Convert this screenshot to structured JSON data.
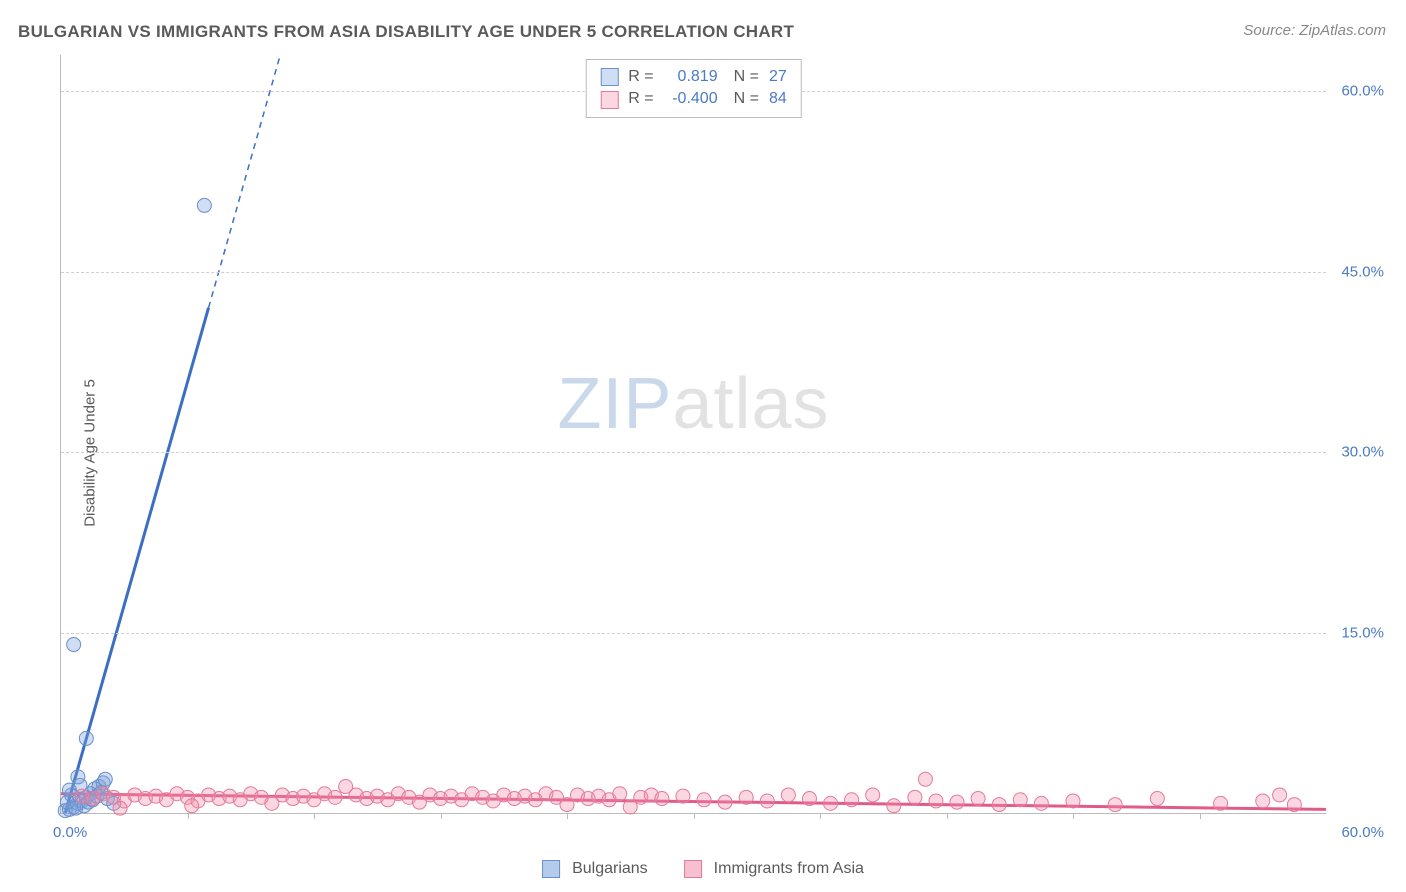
{
  "title": "BULGARIAN VS IMMIGRANTS FROM ASIA DISABILITY AGE UNDER 5 CORRELATION CHART",
  "source_label": "Source:",
  "source_name": "ZipAtlas.com",
  "ylabel": "Disability Age Under 5",
  "watermark": {
    "part1": "ZIP",
    "part2": "atlas"
  },
  "chart": {
    "type": "scatter-correlation",
    "background_color": "#ffffff",
    "grid_color": "#d0d0d0",
    "axis_color": "#bbbbbb",
    "text_color": "#5a5a5a",
    "tick_label_color": "#4a7bc4",
    "tick_fontsize": 15,
    "title_fontsize": 17,
    "label_fontsize": 15,
    "xlim": [
      0,
      60
    ],
    "ylim": [
      0,
      63
    ],
    "x_ticks": [
      0,
      60
    ],
    "x_tick_labels": [
      "0.0%",
      "60.0%"
    ],
    "x_minor_tick_positions": [
      6,
      12,
      18,
      24,
      30,
      36,
      42,
      48,
      54
    ],
    "y_ticks": [
      15,
      30,
      45,
      60
    ],
    "y_tick_labels": [
      "15.0%",
      "30.0%",
      "45.0%",
      "60.0%"
    ],
    "series": [
      {
        "name": "Bulgarians",
        "color_fill": "rgba(120,160,220,0.35)",
        "color_stroke": "#6a8fc9",
        "marker_radius": 7,
        "R": "0.819",
        "N": "27",
        "regression": {
          "solid": {
            "x1": 0.2,
            "y1": 0.0,
            "x2": 7.0,
            "y2": 42.0
          },
          "dashed": {
            "x1": 7.0,
            "y1": 42.0,
            "x2": 10.4,
            "y2": 63.0
          },
          "color": "#3a6fc4",
          "width_solid": 3,
          "width_dashed": 1.5,
          "dash": "6,5"
        },
        "points": [
          [
            0.2,
            0.2
          ],
          [
            0.4,
            0.3
          ],
          [
            0.6,
            0.5
          ],
          [
            0.8,
            0.8
          ],
          [
            1.0,
            1.0
          ],
          [
            1.2,
            1.3
          ],
          [
            1.4,
            1.6
          ],
          [
            1.6,
            2.0
          ],
          [
            1.8,
            2.2
          ],
          [
            2.0,
            2.5
          ],
          [
            0.5,
            1.5
          ],
          [
            0.7,
            0.4
          ],
          [
            1.1,
            0.6
          ],
          [
            1.3,
            0.9
          ],
          [
            1.5,
            1.1
          ],
          [
            1.7,
            1.4
          ],
          [
            1.9,
            1.7
          ],
          [
            2.2,
            1.2
          ],
          [
            2.5,
            0.8
          ],
          [
            0.3,
            0.9
          ],
          [
            0.9,
            2.3
          ],
          [
            1.2,
            6.2
          ],
          [
            0.6,
            14.0
          ],
          [
            6.8,
            50.5
          ],
          [
            0.4,
            1.9
          ],
          [
            2.1,
            2.8
          ],
          [
            0.8,
            3.0
          ]
        ]
      },
      {
        "name": "Immigrants from Asia",
        "color_fill": "rgba(240,140,170,0.35)",
        "color_stroke": "#e47a9a",
        "marker_radius": 7,
        "R": "-0.400",
        "N": "84",
        "regression": {
          "solid": {
            "x1": 0.0,
            "y1": 1.6,
            "x2": 60.0,
            "y2": 0.3
          },
          "color": "#e05a8a",
          "width_solid": 3
        },
        "points": [
          [
            1.0,
            1.4
          ],
          [
            1.5,
            1.2
          ],
          [
            2.0,
            1.6
          ],
          [
            2.5,
            1.3
          ],
          [
            3.0,
            1.0
          ],
          [
            3.5,
            1.5
          ],
          [
            4.0,
            1.2
          ],
          [
            4.5,
            1.4
          ],
          [
            5.0,
            1.1
          ],
          [
            5.5,
            1.6
          ],
          [
            6.0,
            1.3
          ],
          [
            6.5,
            1.0
          ],
          [
            7.0,
            1.5
          ],
          [
            7.5,
            1.2
          ],
          [
            8.0,
            1.4
          ],
          [
            8.5,
            1.1
          ],
          [
            9.0,
            1.6
          ],
          [
            9.5,
            1.3
          ],
          [
            10.0,
            0.8
          ],
          [
            10.5,
            1.5
          ],
          [
            11.0,
            1.2
          ],
          [
            11.5,
            1.4
          ],
          [
            12.0,
            1.1
          ],
          [
            12.5,
            1.6
          ],
          [
            13.0,
            1.3
          ],
          [
            13.5,
            2.2
          ],
          [
            14.0,
            1.5
          ],
          [
            14.5,
            1.2
          ],
          [
            15.0,
            1.4
          ],
          [
            15.5,
            1.1
          ],
          [
            16.0,
            1.6
          ],
          [
            16.5,
            1.3
          ],
          [
            17.0,
            0.9
          ],
          [
            17.5,
            1.5
          ],
          [
            18.0,
            1.2
          ],
          [
            18.5,
            1.4
          ],
          [
            19.0,
            1.1
          ],
          [
            19.5,
            1.6
          ],
          [
            20.0,
            1.3
          ],
          [
            20.5,
            1.0
          ],
          [
            21.0,
            1.5
          ],
          [
            21.5,
            1.2
          ],
          [
            22.0,
            1.4
          ],
          [
            22.5,
            1.1
          ],
          [
            23.0,
            1.6
          ],
          [
            23.5,
            1.3
          ],
          [
            24.0,
            0.7
          ],
          [
            24.5,
            1.5
          ],
          [
            25.0,
            1.2
          ],
          [
            25.5,
            1.4
          ],
          [
            26.0,
            1.1
          ],
          [
            26.5,
            1.6
          ],
          [
            27.0,
            0.5
          ],
          [
            27.5,
            1.3
          ],
          [
            28.0,
            1.5
          ],
          [
            28.5,
            1.2
          ],
          [
            29.5,
            1.4
          ],
          [
            30.5,
            1.1
          ],
          [
            31.5,
            0.9
          ],
          [
            32.5,
            1.3
          ],
          [
            33.5,
            1.0
          ],
          [
            34.5,
            1.5
          ],
          [
            35.5,
            1.2
          ],
          [
            36.5,
            0.8
          ],
          [
            37.5,
            1.1
          ],
          [
            38.5,
            1.5
          ],
          [
            39.5,
            0.6
          ],
          [
            40.5,
            1.3
          ],
          [
            41.5,
            1.0
          ],
          [
            42.5,
            0.9
          ],
          [
            43.5,
            1.2
          ],
          [
            44.5,
            0.7
          ],
          [
            45.5,
            1.1
          ],
          [
            46.5,
            0.8
          ],
          [
            41.0,
            2.8
          ],
          [
            48.0,
            1.0
          ],
          [
            50.0,
            0.7
          ],
          [
            52.0,
            1.2
          ],
          [
            55.0,
            0.8
          ],
          [
            57.0,
            1.0
          ],
          [
            57.8,
            1.5
          ],
          [
            58.5,
            0.7
          ],
          [
            2.8,
            0.4
          ],
          [
            6.2,
            0.6
          ]
        ]
      }
    ],
    "legend_bottom": [
      {
        "label": "Bulgarians",
        "swatch_fill": "rgba(120,160,220,0.55)",
        "swatch_stroke": "#6a8fc9"
      },
      {
        "label": "Immigrants from Asia",
        "swatch_fill": "rgba(240,140,170,0.55)",
        "swatch_stroke": "#e47a9a"
      }
    ]
  }
}
